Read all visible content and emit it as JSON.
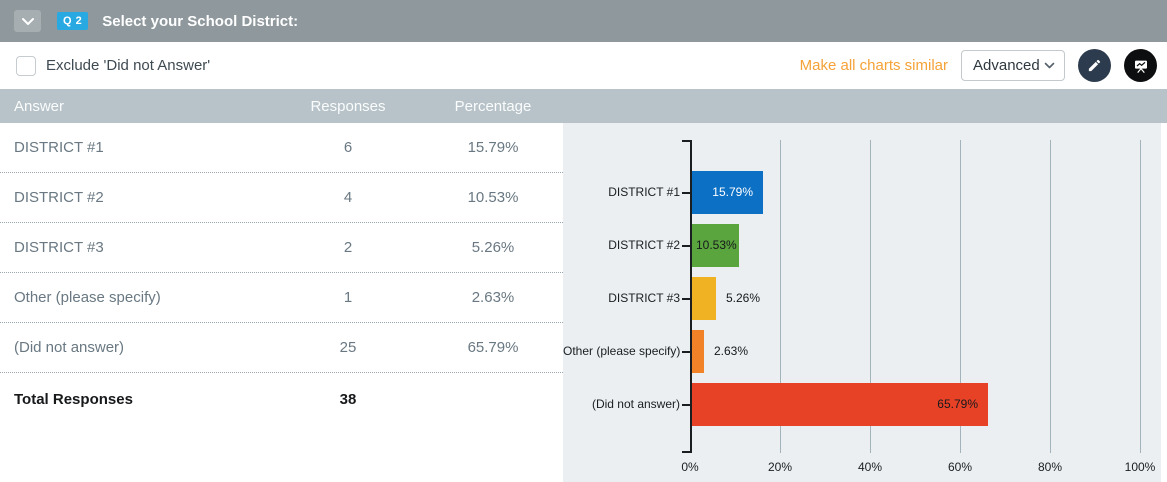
{
  "header": {
    "question_badge": "Q 2",
    "title": "Select your School District:",
    "collapse_icon": "chevron-down-icon"
  },
  "toolbar": {
    "exclude_label": "Exclude 'Did not Answer'",
    "exclude_checked": false,
    "make_similar_label": "Make all charts similar",
    "chart_type_value": "Advanced",
    "edit_icon": "pencil-icon",
    "present_icon": "presentation-screen-icon"
  },
  "table": {
    "columns": {
      "answer": "Answer",
      "responses": "Responses",
      "percentage": "Percentage"
    },
    "rows": [
      {
        "answer": "DISTRICT #1",
        "responses": "6",
        "percentage": "15.79%"
      },
      {
        "answer": "DISTRICT #2",
        "responses": "4",
        "percentage": "10.53%"
      },
      {
        "answer": "DISTRICT #3",
        "responses": "2",
        "percentage": "5.26%"
      },
      {
        "answer": "Other (please specify)",
        "responses": "1",
        "percentage": "2.63%"
      },
      {
        "answer": "(Did not answer)",
        "responses": "25",
        "percentage": "65.79%"
      }
    ],
    "total_label": "Total Responses",
    "total_value": "38"
  },
  "chart_data": {
    "type": "bar",
    "orientation": "horizontal",
    "categories": [
      "DISTRICT #1",
      "DISTRICT #2",
      "DISTRICT #3",
      "Other (please specify)",
      "(Did not answer)"
    ],
    "values": [
      15.79,
      10.53,
      5.26,
      2.63,
      65.79
    ],
    "value_labels": [
      "15.79%",
      "10.53%",
      "5.26%",
      "2.63%",
      "65.79%"
    ],
    "bar_colors": [
      "#0c70c5",
      "#5ba53e",
      "#f0b122",
      "#f18227",
      "#e84226"
    ],
    "label_styles": [
      {
        "position": "inside-right",
        "color": "#ffffff"
      },
      {
        "position": "inside-left",
        "color": "#16191c"
      },
      {
        "position": "outside",
        "color": "#16191c"
      },
      {
        "position": "outside",
        "color": "#16191c"
      },
      {
        "position": "inside-right",
        "color": "#16191c"
      }
    ],
    "x_ticks": [
      "0%",
      "20%",
      "40%",
      "60%",
      "80%",
      "100%"
    ],
    "x_tick_values": [
      0,
      20,
      40,
      60,
      80,
      100
    ],
    "xlim": [
      0,
      100
    ],
    "grid": true,
    "legend": "none",
    "background": "#eceff1"
  },
  "colors": {
    "header_gray": "#8f989d",
    "badge_blue": "#29a9e1",
    "link_orange": "#f5a237",
    "table_header_bg": "#b7c3c9",
    "chart_bg": "#eceff1"
  }
}
